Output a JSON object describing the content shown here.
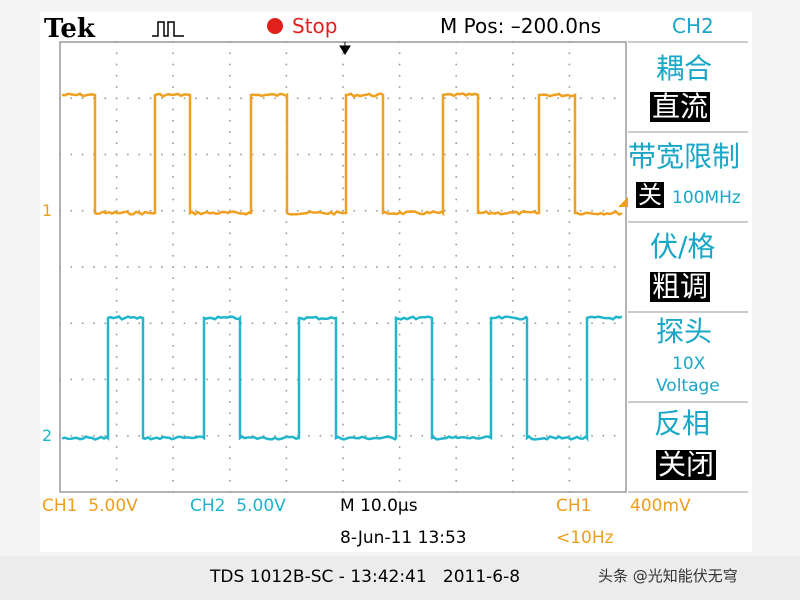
{
  "header": {
    "brand": "Tek",
    "status": "Stop",
    "position": "M Pos: –200.0ns",
    "channel": "CH2"
  },
  "menu": [
    {
      "title": "耦合",
      "value": "直流"
    },
    {
      "title": "带宽限制",
      "value": "关",
      "extra": "100MHz"
    },
    {
      "title": "伏/格",
      "value": "粗调"
    },
    {
      "title": "探头",
      "lines": [
        "10X",
        "Voltage"
      ]
    },
    {
      "title": "反相",
      "value": "关闭"
    }
  ],
  "markers": [
    "1",
    "2"
  ],
  "readout": {
    "ch1": "CH1  5.00V",
    "ch2": "CH2  5.00V",
    "timebase": "M 10.0µs",
    "trigger_source": "CH1",
    "trigger_level": "400mV",
    "date": "8-Jun-11 13:53",
    "frequency": "<10Hz"
  },
  "footer": {
    "caption": "TDS 1012B-SC - 13:42:41   2011-6-8",
    "watermark": "头条 @光知能伏无穹"
  }
}
